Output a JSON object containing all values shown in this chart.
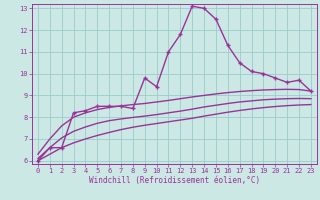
{
  "bg_color": "#cce8e4",
  "grid_color": "#99cccc",
  "line_color": "#993399",
  "xmin": -0.5,
  "xmax": 23.5,
  "ymin": 5.85,
  "ymax": 13.2,
  "series": [
    {
      "x": [
        0,
        1,
        2,
        3,
        4,
        5,
        6,
        7,
        8,
        9,
        10,
        11,
        12,
        13,
        14,
        15,
        16,
        17,
        18,
        19,
        20,
        21,
        22,
        23
      ],
      "y": [
        6.0,
        6.6,
        6.6,
        8.2,
        8.3,
        8.5,
        8.5,
        8.5,
        8.4,
        9.8,
        9.4,
        11.0,
        11.8,
        13.1,
        13.0,
        12.5,
        11.3,
        10.5,
        10.1,
        10.0,
        9.8,
        9.6,
        9.7,
        9.2
      ],
      "marker": true,
      "linewidth": 1.0
    },
    {
      "x": [
        0,
        1,
        2,
        3,
        4,
        5,
        6,
        7,
        8,
        9,
        10,
        11,
        12,
        13,
        14,
        15,
        16,
        17,
        18,
        19,
        20,
        21,
        22,
        23
      ],
      "y": [
        6.3,
        7.0,
        7.6,
        8.0,
        8.2,
        8.35,
        8.45,
        8.52,
        8.58,
        8.63,
        8.7,
        8.77,
        8.85,
        8.93,
        9.0,
        9.07,
        9.13,
        9.18,
        9.22,
        9.25,
        9.27,
        9.28,
        9.27,
        9.2
      ],
      "marker": false,
      "linewidth": 1.0
    },
    {
      "x": [
        0,
        1,
        2,
        3,
        4,
        5,
        6,
        7,
        8,
        9,
        10,
        11,
        12,
        13,
        14,
        15,
        16,
        17,
        18,
        19,
        20,
        21,
        22,
        23
      ],
      "y": [
        6.1,
        6.6,
        7.05,
        7.35,
        7.55,
        7.72,
        7.84,
        7.92,
        7.99,
        8.05,
        8.12,
        8.2,
        8.28,
        8.37,
        8.47,
        8.55,
        8.63,
        8.7,
        8.75,
        8.8,
        8.83,
        8.85,
        8.86,
        8.85
      ],
      "marker": false,
      "linewidth": 1.0
    },
    {
      "x": [
        0,
        1,
        2,
        3,
        4,
        5,
        6,
        7,
        8,
        9,
        10,
        11,
        12,
        13,
        14,
        15,
        16,
        17,
        18,
        19,
        20,
        21,
        22,
        23
      ],
      "y": [
        6.0,
        6.3,
        6.6,
        6.82,
        7.0,
        7.16,
        7.3,
        7.43,
        7.54,
        7.63,
        7.71,
        7.79,
        7.87,
        7.95,
        8.05,
        8.14,
        8.23,
        8.31,
        8.38,
        8.44,
        8.49,
        8.53,
        8.56,
        8.58
      ],
      "marker": false,
      "linewidth": 1.0
    }
  ],
  "xticks": [
    0,
    1,
    2,
    3,
    4,
    5,
    6,
    7,
    8,
    9,
    10,
    11,
    12,
    13,
    14,
    15,
    16,
    17,
    18,
    19,
    20,
    21,
    22,
    23
  ],
  "yticks": [
    6,
    7,
    8,
    9,
    10,
    11,
    12,
    13
  ],
  "xlabel": "Windchill (Refroidissement éolien,°C)",
  "xlabel_fontsize": 5.5,
  "tick_fontsize": 5.0
}
